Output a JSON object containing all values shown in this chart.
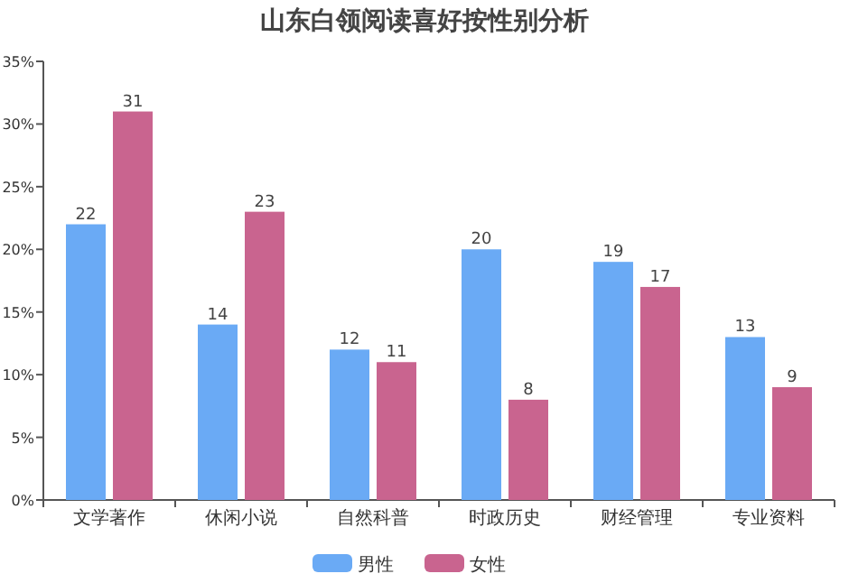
{
  "chart_data": {
    "type": "bar",
    "title": "山东白领阅读喜好按性别分析",
    "categories": [
      "文学著作",
      "休闲小说",
      "自然科普",
      "时政历史",
      "财经管理",
      "专业资料"
    ],
    "series": [
      {
        "name": "男性",
        "color": "#6aaaf5",
        "values": [
          22,
          14,
          12,
          20,
          19,
          13
        ]
      },
      {
        "name": "女性",
        "color": "#c9648f",
        "values": [
          31,
          23,
          11,
          8,
          17,
          9
        ]
      }
    ],
    "ylim": [
      0,
      35
    ],
    "yticks": [
      {
        "value": 0,
        "label": "0%"
      },
      {
        "value": 5,
        "label": "5%"
      },
      {
        "value": 10,
        "label": "10%"
      },
      {
        "value": 15,
        "label": "15%"
      },
      {
        "value": 20,
        "label": "20%"
      },
      {
        "value": 25,
        "label": "25%"
      },
      {
        "value": 30,
        "label": "30%"
      },
      {
        "value": 35,
        "label": "35%"
      }
    ],
    "data_labels": true,
    "legend": "bottom"
  }
}
